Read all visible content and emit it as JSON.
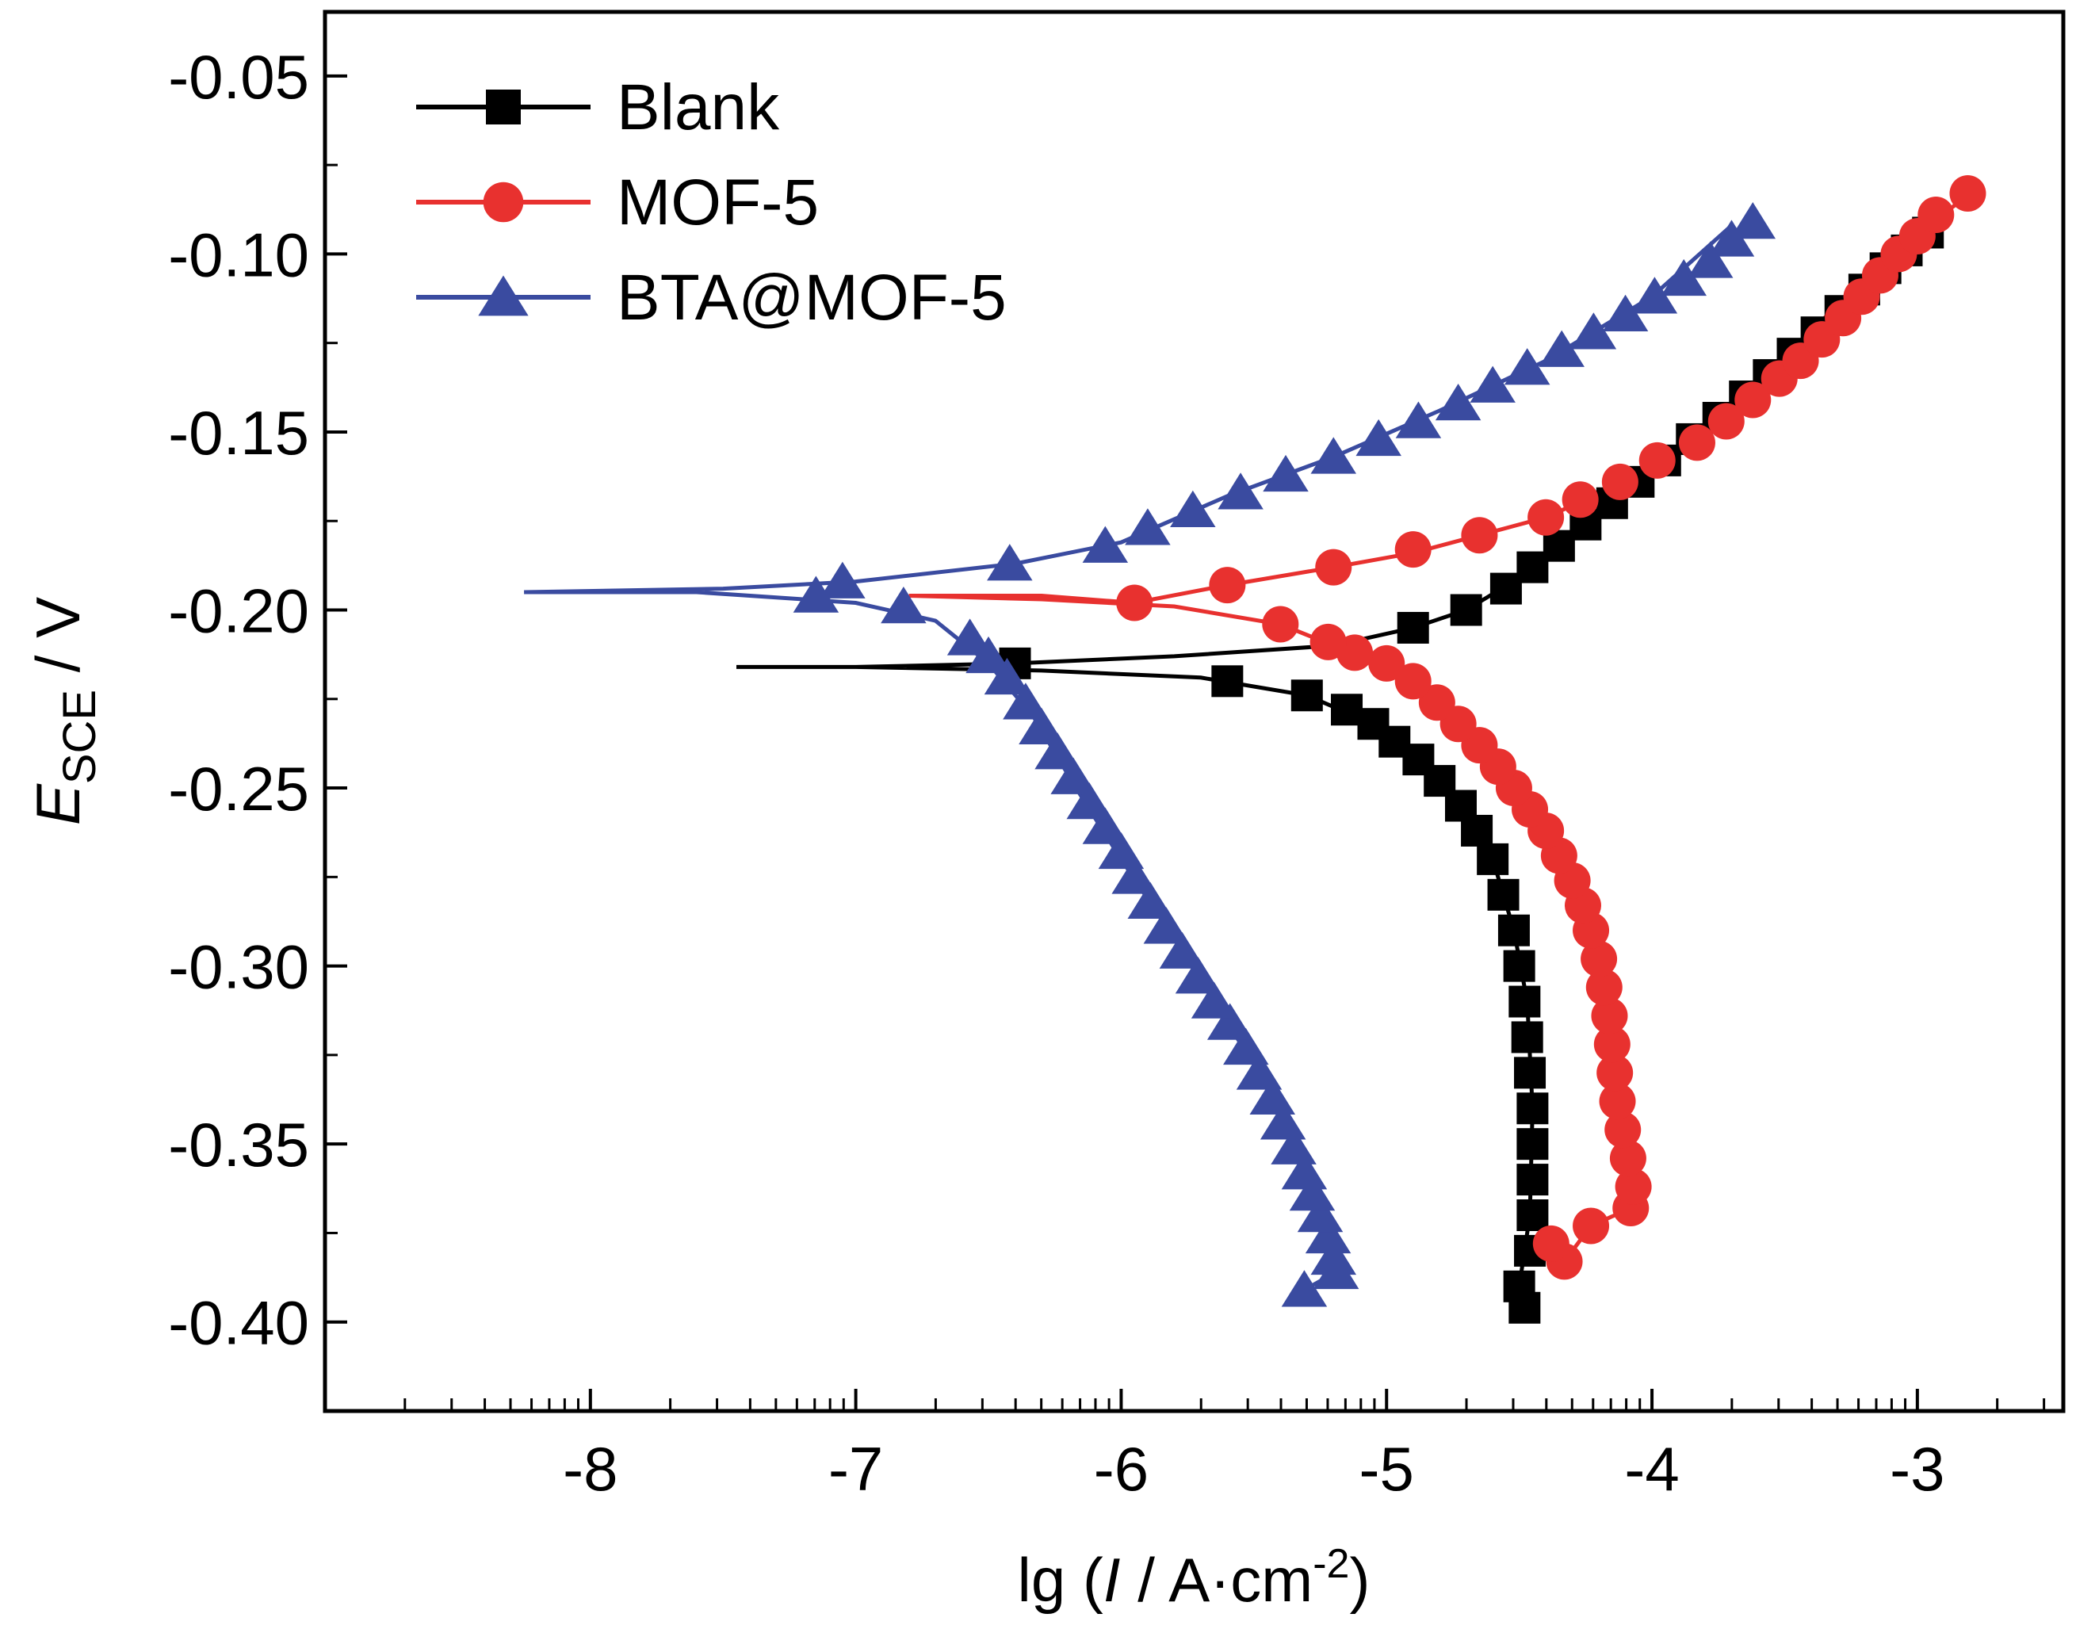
{
  "chart_data": {
    "type": "line",
    "xlabel": {
      "prefix": "lg (",
      "var": "I",
      "mid": " / A·cm",
      "sup": "-2",
      "suffix": ")"
    },
    "ylabel": {
      "var": "E",
      "sub": "SCE",
      "suffix": " / V"
    },
    "xlim": [
      -9.0,
      -2.45
    ],
    "ylim": [
      -0.425,
      -0.032
    ],
    "x_ticks": [
      -8,
      -7,
      -6,
      -5,
      -4,
      -3
    ],
    "x_tick_labels": [
      "-8",
      "-7",
      "-6",
      "-5",
      "-4",
      "-3"
    ],
    "y_ticks": [
      -0.05,
      -0.1,
      -0.15,
      -0.2,
      -0.25,
      -0.3,
      -0.35,
      -0.4
    ],
    "y_tick_labels": [
      "-0.05",
      "-0.10",
      "-0.15",
      "-0.20",
      "-0.25",
      "-0.30",
      "-0.35",
      "-0.40"
    ],
    "x_scale": "linear",
    "grid": false,
    "legend": "top-left",
    "series": [
      {
        "name": "Blank",
        "color": "#000000",
        "marker": "square",
        "curve": [
          [
            -4.48,
            -0.396
          ],
          [
            -4.5,
            -0.39
          ],
          [
            -4.46,
            -0.37
          ],
          [
            -4.45,
            -0.34
          ],
          [
            -4.47,
            -0.31
          ],
          [
            -4.52,
            -0.29
          ],
          [
            -4.6,
            -0.27
          ],
          [
            -4.72,
            -0.255
          ],
          [
            -4.88,
            -0.242
          ],
          [
            -5.05,
            -0.232
          ],
          [
            -5.3,
            -0.224
          ],
          [
            -5.7,
            -0.219
          ],
          [
            -6.3,
            -0.217
          ],
          [
            -7.0,
            -0.216
          ],
          [
            -7.45,
            -0.216
          ],
          [
            -7.0,
            -0.216
          ],
          [
            -6.4,
            -0.215
          ],
          [
            -5.8,
            -0.213
          ],
          [
            -5.2,
            -0.21
          ],
          [
            -4.9,
            -0.205
          ],
          [
            -4.7,
            -0.2
          ],
          [
            -4.5,
            -0.191
          ],
          [
            -4.3,
            -0.179
          ],
          [
            -4.1,
            -0.166
          ],
          [
            -3.9,
            -0.155
          ],
          [
            -3.7,
            -0.144
          ],
          [
            -3.5,
            -0.131
          ],
          [
            -3.3,
            -0.117
          ],
          [
            -3.1,
            -0.104
          ],
          [
            -2.94,
            -0.093
          ]
        ],
        "points": [
          [
            -4.48,
            -0.396
          ],
          [
            -4.5,
            -0.39
          ],
          [
            -4.46,
            -0.38
          ],
          [
            -4.45,
            -0.37
          ],
          [
            -4.45,
            -0.36
          ],
          [
            -4.45,
            -0.35
          ],
          [
            -4.45,
            -0.34
          ],
          [
            -4.46,
            -0.33
          ],
          [
            -4.47,
            -0.32
          ],
          [
            -4.48,
            -0.31
          ],
          [
            -4.5,
            -0.3
          ],
          [
            -4.52,
            -0.29
          ],
          [
            -4.56,
            -0.28
          ],
          [
            -4.6,
            -0.27
          ],
          [
            -4.66,
            -0.262
          ],
          [
            -4.72,
            -0.255
          ],
          [
            -4.8,
            -0.248
          ],
          [
            -4.88,
            -0.242
          ],
          [
            -4.97,
            -0.237
          ],
          [
            -5.05,
            -0.232
          ],
          [
            -5.15,
            -0.228
          ],
          [
            -5.3,
            -0.224
          ],
          [
            -5.6,
            -0.22
          ],
          [
            -6.4,
            -0.215
          ],
          [
            -4.9,
            -0.205
          ],
          [
            -4.7,
            -0.2
          ],
          [
            -4.55,
            -0.194
          ],
          [
            -4.45,
            -0.188
          ],
          [
            -4.35,
            -0.182
          ],
          [
            -4.25,
            -0.176
          ],
          [
            -4.15,
            -0.17
          ],
          [
            -4.05,
            -0.164
          ],
          [
            -3.95,
            -0.158
          ],
          [
            -3.85,
            -0.152
          ],
          [
            -3.75,
            -0.146
          ],
          [
            -3.65,
            -0.14
          ],
          [
            -3.56,
            -0.134
          ],
          [
            -3.47,
            -0.128
          ],
          [
            -3.38,
            -0.122
          ],
          [
            -3.29,
            -0.116
          ],
          [
            -3.2,
            -0.11
          ],
          [
            -3.12,
            -0.104
          ],
          [
            -3.04,
            -0.099
          ],
          [
            -2.96,
            -0.094
          ]
        ]
      },
      {
        "name": "MOF-5",
        "color": "#e8312f",
        "marker": "circle",
        "curve": [
          [
            -4.33,
            -0.383
          ],
          [
            -4.23,
            -0.373
          ],
          [
            -4.08,
            -0.368
          ],
          [
            -4.07,
            -0.362
          ],
          [
            -4.1,
            -0.35
          ],
          [
            -4.13,
            -0.34
          ],
          [
            -4.16,
            -0.32
          ],
          [
            -4.2,
            -0.3
          ],
          [
            -4.28,
            -0.28
          ],
          [
            -4.4,
            -0.26
          ],
          [
            -4.6,
            -0.24
          ],
          [
            -4.85,
            -0.222
          ],
          [
            -5.1,
            -0.213
          ],
          [
            -5.4,
            -0.204
          ],
          [
            -5.8,
            -0.199
          ],
          [
            -6.3,
            -0.197
          ],
          [
            -6.8,
            -0.196
          ],
          [
            -6.3,
            -0.196
          ],
          [
            -5.95,
            -0.198
          ],
          [
            -5.6,
            -0.193
          ],
          [
            -5.2,
            -0.188
          ],
          [
            -4.9,
            -0.184
          ],
          [
            -4.65,
            -0.179
          ],
          [
            -4.4,
            -0.174
          ],
          [
            -4.1,
            -0.164
          ],
          [
            -3.85,
            -0.152
          ],
          [
            -3.6,
            -0.137
          ],
          [
            -3.35,
            -0.118
          ],
          [
            -3.1,
            -0.1
          ],
          [
            -2.8,
            -0.083
          ]
        ],
        "points": [
          [
            -4.33,
            -0.383
          ],
          [
            -4.38,
            -0.378
          ],
          [
            -4.23,
            -0.373
          ],
          [
            -4.08,
            -0.368
          ],
          [
            -4.07,
            -0.362
          ],
          [
            -4.09,
            -0.354
          ],
          [
            -4.11,
            -0.346
          ],
          [
            -4.13,
            -0.338
          ],
          [
            -4.14,
            -0.33
          ],
          [
            -4.15,
            -0.322
          ],
          [
            -4.16,
            -0.314
          ],
          [
            -4.18,
            -0.306
          ],
          [
            -4.2,
            -0.298
          ],
          [
            -4.23,
            -0.29
          ],
          [
            -4.26,
            -0.283
          ],
          [
            -4.3,
            -0.276
          ],
          [
            -4.35,
            -0.269
          ],
          [
            -4.4,
            -0.262
          ],
          [
            -4.46,
            -0.256
          ],
          [
            -4.52,
            -0.25
          ],
          [
            -4.58,
            -0.244
          ],
          [
            -4.65,
            -0.238
          ],
          [
            -4.73,
            -0.232
          ],
          [
            -4.81,
            -0.226
          ],
          [
            -4.9,
            -0.22
          ],
          [
            -5.0,
            -0.215
          ],
          [
            -5.12,
            -0.212
          ],
          [
            -5.22,
            -0.209
          ],
          [
            -5.4,
            -0.204
          ],
          [
            -5.95,
            -0.198
          ],
          [
            -5.6,
            -0.193
          ],
          [
            -5.2,
            -0.188
          ],
          [
            -4.9,
            -0.183
          ],
          [
            -4.65,
            -0.179
          ],
          [
            -4.4,
            -0.174
          ],
          [
            -4.27,
            -0.169
          ],
          [
            -4.12,
            -0.164
          ],
          [
            -3.98,
            -0.158
          ],
          [
            -3.83,
            -0.153
          ],
          [
            -3.72,
            -0.147
          ],
          [
            -3.62,
            -0.141
          ],
          [
            -3.52,
            -0.135
          ],
          [
            -3.44,
            -0.13
          ],
          [
            -3.36,
            -0.124
          ],
          [
            -3.28,
            -0.118
          ],
          [
            -3.21,
            -0.112
          ],
          [
            -3.14,
            -0.106
          ],
          [
            -3.07,
            -0.1
          ],
          [
            -3.0,
            -0.095
          ],
          [
            -2.93,
            -0.089
          ],
          [
            -2.81,
            -0.083
          ]
        ]
      },
      {
        "name": "BTA@MOF-5",
        "color": "#3a4ba0",
        "marker": "triangle",
        "curve": [
          [
            -5.31,
            -0.391
          ],
          [
            -5.19,
            -0.386
          ],
          [
            -5.25,
            -0.37
          ],
          [
            -5.35,
            -0.35
          ],
          [
            -5.48,
            -0.33
          ],
          [
            -5.65,
            -0.31
          ],
          [
            -5.82,
            -0.29
          ],
          [
            -6.0,
            -0.27
          ],
          [
            -6.17,
            -0.25
          ],
          [
            -6.33,
            -0.23
          ],
          [
            -6.5,
            -0.215
          ],
          [
            -6.7,
            -0.203
          ],
          [
            -7.0,
            -0.198
          ],
          [
            -7.6,
            -0.195
          ],
          [
            -8.25,
            -0.195
          ],
          [
            -7.5,
            -0.194
          ],
          [
            -7.0,
            -0.192
          ],
          [
            -6.4,
            -0.187
          ],
          [
            -6.0,
            -0.181
          ],
          [
            -5.6,
            -0.168
          ],
          [
            -5.2,
            -0.157
          ],
          [
            -4.8,
            -0.144
          ],
          [
            -4.4,
            -0.13
          ],
          [
            -4.0,
            -0.112
          ],
          [
            -3.7,
            -0.092
          ]
        ],
        "points": [
          [
            -5.31,
            -0.391
          ],
          [
            -5.19,
            -0.386
          ],
          [
            -5.2,
            -0.382
          ],
          [
            -5.22,
            -0.376
          ],
          [
            -5.25,
            -0.37
          ],
          [
            -5.28,
            -0.364
          ],
          [
            -5.31,
            -0.358
          ],
          [
            -5.35,
            -0.351
          ],
          [
            -5.39,
            -0.344
          ],
          [
            -5.43,
            -0.337
          ],
          [
            -5.48,
            -0.33
          ],
          [
            -5.53,
            -0.323
          ],
          [
            -5.59,
            -0.316
          ],
          [
            -5.65,
            -0.31
          ],
          [
            -5.71,
            -0.303
          ],
          [
            -5.77,
            -0.296
          ],
          [
            -5.83,
            -0.289
          ],
          [
            -5.89,
            -0.282
          ],
          [
            -5.95,
            -0.275
          ],
          [
            -6.0,
            -0.268
          ],
          [
            -6.06,
            -0.261
          ],
          [
            -6.12,
            -0.254
          ],
          [
            -6.18,
            -0.247
          ],
          [
            -6.24,
            -0.24
          ],
          [
            -6.3,
            -0.233
          ],
          [
            -6.36,
            -0.226
          ],
          [
            -6.43,
            -0.219
          ],
          [
            -6.5,
            -0.213
          ],
          [
            -6.57,
            -0.208
          ],
          [
            -6.82,
            -0.199
          ],
          [
            -7.15,
            -0.196
          ],
          [
            -7.05,
            -0.192
          ],
          [
            -6.42,
            -0.187
          ],
          [
            -6.06,
            -0.182
          ],
          [
            -5.9,
            -0.177
          ],
          [
            -5.73,
            -0.172
          ],
          [
            -5.55,
            -0.167
          ],
          [
            -5.38,
            -0.162
          ],
          [
            -5.2,
            -0.157
          ],
          [
            -5.03,
            -0.152
          ],
          [
            -4.88,
            -0.147
          ],
          [
            -4.73,
            -0.142
          ],
          [
            -4.6,
            -0.137
          ],
          [
            -4.47,
            -0.132
          ],
          [
            -4.34,
            -0.127
          ],
          [
            -4.22,
            -0.122
          ],
          [
            -4.1,
            -0.117
          ],
          [
            -3.99,
            -0.112
          ],
          [
            -3.88,
            -0.107
          ],
          [
            -3.78,
            -0.102
          ],
          [
            -3.7,
            -0.096
          ],
          [
            -3.62,
            -0.091
          ]
        ]
      }
    ]
  }
}
